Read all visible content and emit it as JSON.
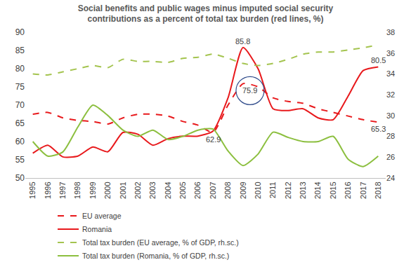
{
  "chart_data": {
    "type": "line",
    "title": "Social benefits and public wages minus imputed social security\ncontributions as a percent of total tax burden (red lines, %)",
    "x": [
      1995,
      1996,
      1997,
      1998,
      1999,
      2000,
      2001,
      2002,
      2003,
      2004,
      2005,
      2006,
      2007,
      2008,
      2009,
      2010,
      2011,
      2012,
      2013,
      2014,
      2015,
      2016,
      2017,
      2018
    ],
    "xlim": [
      1994.5,
      2018.5
    ],
    "xticks": [
      1995,
      1996,
      1997,
      1998,
      1999,
      2000,
      2001,
      2002,
      2003,
      2004,
      2005,
      2006,
      2007,
      2008,
      2009,
      2010,
      2011,
      2012,
      2013,
      2014,
      2015,
      2016,
      2017,
      2018
    ],
    "ylim": [
      50,
      90
    ],
    "yticks": [
      50,
      55,
      60,
      65,
      70,
      75,
      80,
      85,
      90
    ],
    "y2lim": [
      24,
      38
    ],
    "y2ticks": [
      24,
      26,
      28,
      30,
      32,
      34,
      36,
      38
    ],
    "grid": false,
    "legend": "bottom",
    "series": [
      {
        "name": "EU average",
        "color": "#e8191c",
        "line_style": "dashed",
        "values": [
          67.5,
          68,
          66.5,
          65.8,
          65.5,
          64.8,
          66.5,
          67.5,
          67.5,
          67,
          65.5,
          64.5,
          62.5,
          70,
          75.9,
          75,
          72,
          71,
          70.5,
          69,
          68,
          67,
          66,
          65.3
        ]
      },
      {
        "name": "Romania",
        "color": "#e8191c",
        "line_style": "solid",
        "values": [
          56.8,
          59,
          55.8,
          56,
          58.5,
          57.2,
          62.5,
          62,
          59,
          60.8,
          61.5,
          61.5,
          62.9,
          72,
          85.8,
          80,
          69,
          68.5,
          69,
          66.5,
          66,
          72.5,
          79.5,
          80.5
        ]
      },
      {
        "name": "Total tax burden (EU average, % of GDP, rh.sc.)",
        "color": "#a4c44f",
        "line_style": "dashed",
        "axis": "y2",
        "values": [
          34.0,
          33.9,
          34.2,
          34.5,
          34.8,
          34.6,
          35.4,
          35.2,
          35.2,
          35.1,
          35.5,
          35.6,
          35.9,
          35.5,
          35.0,
          34.8,
          35.0,
          35.4,
          35.9,
          36.1,
          36.1,
          36.3,
          36.5,
          36.8
        ]
      },
      {
        "name": "Total tax burden (Romania, % of GDP, rh.sc.)",
        "color": "#8cbf3f",
        "line_style": "solid",
        "axis": "y2",
        "values": [
          27.5,
          26.1,
          26.5,
          28.9,
          31.0,
          30.0,
          28.6,
          28.0,
          28.6,
          27.7,
          28.0,
          28.6,
          28.7,
          26.6,
          25.2,
          26.3,
          28.4,
          27.9,
          27.5,
          27.5,
          28.0,
          25.8,
          25.1,
          26.1
        ]
      }
    ],
    "annotations": [
      {
        "text": "85.8",
        "x": 2009,
        "y": 85.8
      },
      {
        "text": "75.9",
        "x": 2009,
        "y": 75.9,
        "marker": "circle"
      },
      {
        "text": "62.9",
        "x": 2007,
        "y": 62.9
      },
      {
        "text": "80.5",
        "x": 2018,
        "y": 80.5
      },
      {
        "text": "65.3",
        "x": 2018,
        "y": 65.3
      }
    ]
  }
}
